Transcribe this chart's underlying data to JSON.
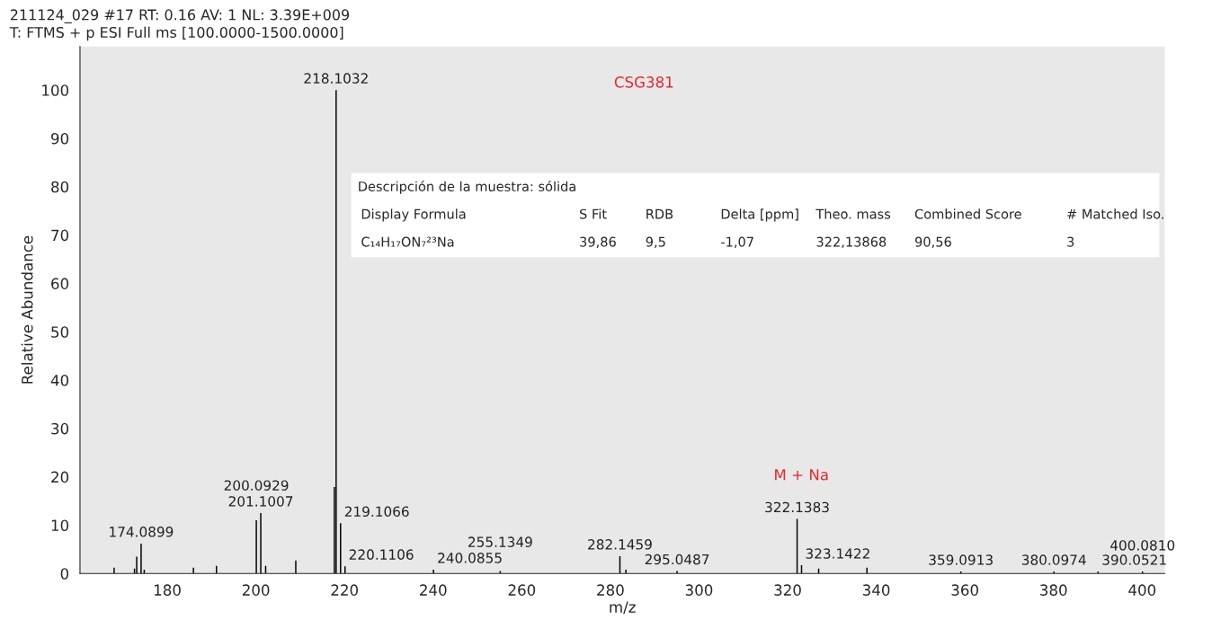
{
  "chart_data": {
    "type": "bar",
    "title": "211124_029 #17 RT: 0.16 AV: 1 NL: 3.39E+009",
    "subtitle": "T: FTMS + p ESI Full ms [100.0000-1500.0000]",
    "xlabel": "m/z",
    "ylabel": "Relative Abundance",
    "x": [
      168.0,
      172.6,
      173.1,
      174.0899,
      174.8,
      185.9,
      191.1,
      200.0929,
      201.1007,
      202.2,
      209.0,
      217.7,
      218.1032,
      219.1066,
      220.1106,
      240.0855,
      255.1349,
      282.1459,
      283.5,
      295.0487,
      322.1383,
      323.1422,
      327.0,
      337.9,
      359.0913,
      380.0974,
      390.0521,
      400.081
    ],
    "values": [
      1.2,
      1.0,
      3.5,
      6.2,
      0.8,
      1.2,
      1.6,
      11.0,
      12.5,
      1.6,
      2.7,
      17.9,
      100,
      10.4,
      1.5,
      0.8,
      0.5,
      3.6,
      0.8,
      0.5,
      11.3,
      1.7,
      1.0,
      1.2,
      0.4,
      0.4,
      0.4,
      0.4
    ],
    "color": "#000000",
    "xlim": [
      160.3,
      405.1
    ],
    "xticks": [
      180,
      200,
      220,
      240,
      260,
      280,
      300,
      320,
      340,
      360,
      380,
      400
    ],
    "ylim": [
      0,
      109
    ],
    "yticks": [
      0,
      10,
      20,
      30,
      40,
      50,
      60,
      70,
      80,
      90,
      100
    ],
    "annotations": [
      "CSG381",
      "M + Na",
      "Descripción de la muestra: sólida",
      "Display Formula",
      "S Fit",
      "RDB",
      "Delta [ppm]",
      "Theo. mass",
      "Combined Score",
      "# Matched Iso.",
      "C₁₄H₁₇ON₇²³Na",
      "39,86",
      "9,5",
      "-1,07",
      "322,13868",
      "90,56",
      "3",
      {
        "text": "218.1032",
        "x": 218.1032,
        "y": 100
      },
      {
        "text": "322.1383",
        "x": 322.1383,
        "y": 11.3
      },
      {
        "text": "201.1007",
        "x": 201.1007,
        "y": 12.5
      },
      {
        "text": "200.0929",
        "x": 200.0929,
        "y": 11.0
      },
      {
        "text": "219.1066",
        "x": 219.1066,
        "y": 10.4
      },
      {
        "text": "174.0899",
        "x": 174.0899,
        "y": 6.2
      },
      {
        "text": "282.1459",
        "x": 282.1459,
        "y": 3.6
      },
      {
        "text": "323.1422",
        "x": 323.1422,
        "y": 1.7
      },
      {
        "text": "220.1106",
        "x": 220.1106,
        "y": 1.5
      },
      {
        "text": "240.0855",
        "x": 240.0855,
        "y": 0.8
      },
      {
        "text": "255.1349",
        "x": 255.1349,
        "y": 0.5
      },
      {
        "text": "295.0487",
        "x": 295.0487,
        "y": 0.5
      },
      {
        "text": "359.0913",
        "x": 359.0913,
        "y": 0.4
      },
      {
        "text": "380.0974",
        "x": 380.0974,
        "y": 0.4
      },
      {
        "text": "390.0521",
        "x": 390.0521,
        "y": 0.4
      },
      {
        "text": "400.0810",
        "x": 400.081,
        "y": 0.4
      }
    ]
  }
}
